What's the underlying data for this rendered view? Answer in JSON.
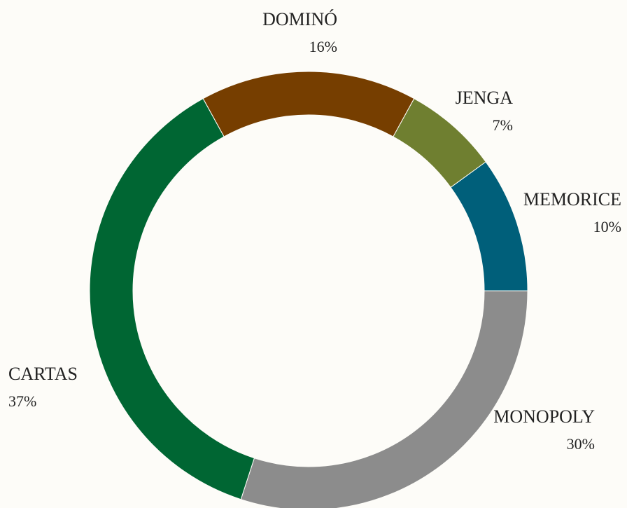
{
  "chart_data": {
    "type": "donut",
    "categories": [
      "DOMINÓ",
      "JENGA",
      "MEMORICE",
      "MONOPOLY",
      "CARTAS"
    ],
    "values": [
      16,
      7,
      10,
      30,
      37
    ],
    "value_labels": [
      "16%",
      "7%",
      "10%",
      "30%",
      "37%"
    ],
    "colors": [
      "#763e00",
      "#6f7f30",
      "#005f7a",
      "#8c8c8c",
      "#006633"
    ]
  }
}
